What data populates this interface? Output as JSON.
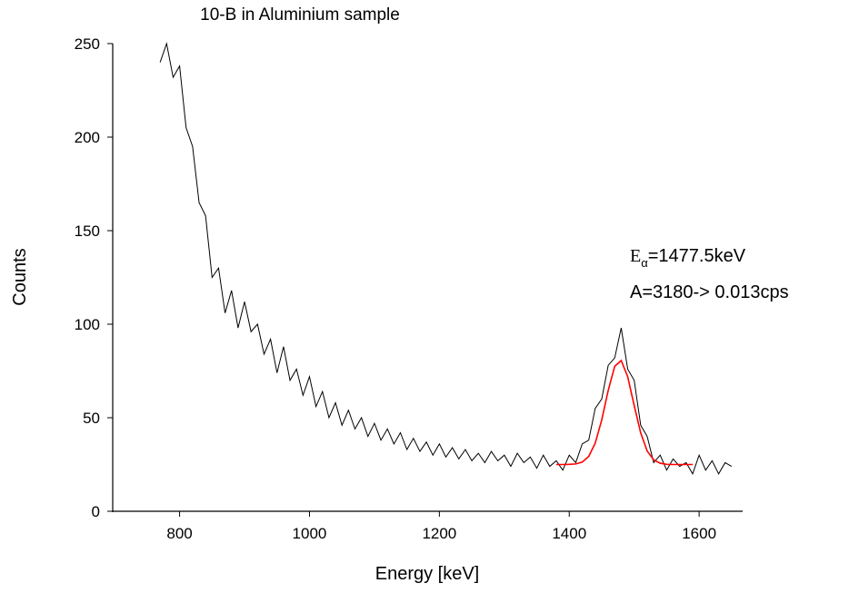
{
  "chart_data": {
    "type": "line",
    "title": "10-B in Aluminium sample",
    "x_label": "Energy [keV]",
    "y_label": "Counts",
    "annotations": [
      {
        "main": "E",
        "sub": "α",
        "rest": "=1477.5keV"
      },
      {
        "text": "A=3180-> 0.013cps"
      }
    ],
    "xlim": [
      697,
      1667
    ],
    "ylim": [
      0,
      250
    ],
    "xticks": [
      800,
      1000,
      1200,
      1400,
      1600
    ],
    "yticks": [
      0,
      50,
      100,
      150,
      200,
      250
    ],
    "series": [
      {
        "color": "#000000",
        "x": [
          770,
          780,
          790,
          800,
          810,
          820,
          830,
          840,
          850,
          860,
          870,
          880,
          890,
          900,
          910,
          920,
          930,
          940,
          950,
          960,
          970,
          980,
          990,
          1000,
          1010,
          1020,
          1030,
          1040,
          1050,
          1060,
          1070,
          1080,
          1090,
          1100,
          1110,
          1120,
          1130,
          1140,
          1150,
          1160,
          1170,
          1180,
          1190,
          1200,
          1210,
          1220,
          1230,
          1240,
          1250,
          1260,
          1270,
          1280,
          1290,
          1300,
          1310,
          1320,
          1330,
          1340,
          1350,
          1360,
          1370,
          1380,
          1390,
          1400,
          1410,
          1420,
          1430,
          1440,
          1450,
          1460,
          1470,
          1480,
          1490,
          1500,
          1510,
          1520,
          1530,
          1540,
          1550,
          1560,
          1570,
          1580,
          1590,
          1600,
          1610,
          1620,
          1630,
          1640,
          1650
        ],
        "values": [
          240,
          250,
          232,
          238,
          205,
          195,
          165,
          158,
          125,
          130,
          106,
          118,
          98,
          112,
          96,
          100,
          84,
          92,
          74,
          88,
          70,
          76,
          62,
          72,
          56,
          64,
          50,
          58,
          46,
          54,
          44,
          50,
          40,
          47,
          38,
          44,
          36,
          42,
          33,
          39,
          32,
          37,
          30,
          36,
          29,
          34,
          28,
          33,
          27,
          31,
          26,
          32,
          27,
          30,
          24,
          31,
          26,
          29,
          23,
          30,
          24,
          27,
          22,
          30,
          26,
          36,
          38,
          55,
          60,
          78,
          82,
          98,
          76,
          70,
          46,
          40,
          26,
          30,
          22,
          28,
          24,
          26,
          20,
          30,
          22,
          27,
          20,
          26,
          24
        ]
      },
      {
        "color": "#ff0000",
        "x": [
          1380,
          1390,
          1400,
          1410,
          1420,
          1430,
          1440,
          1450,
          1460,
          1470,
          1480,
          1490,
          1500,
          1510,
          1520,
          1530,
          1540,
          1550,
          1560,
          1570,
          1580,
          1590
        ],
        "values": [
          25,
          25,
          25.1,
          25.3,
          26.3,
          29.3,
          36.4,
          48.8,
          64.6,
          77.5,
          80.6,
          71.9,
          56.5,
          41.9,
          32.2,
          27.5,
          25.7,
          25.1,
          25,
          25,
          25,
          25
        ]
      }
    ]
  }
}
